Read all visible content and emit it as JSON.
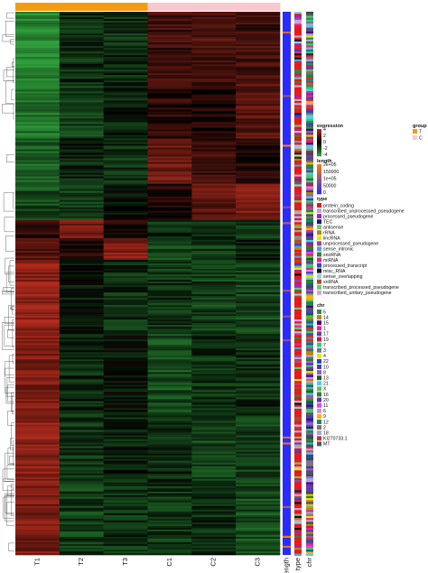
{
  "chart_data": {
    "type": "heatmap",
    "columns": [
      "T1",
      "T2",
      "T3",
      "C1",
      "C2",
      "C3"
    ],
    "annotation_columns": [
      "length",
      "type",
      "chr"
    ],
    "column_annotation": {
      "title": "group",
      "groups": [
        {
          "label": "T",
          "color": "#F39C12"
        },
        {
          "label": "C",
          "color": "#F8C8D0"
        }
      ],
      "assignment": [
        "T",
        "T",
        "T",
        "C",
        "C",
        "C"
      ]
    },
    "expression_scale": {
      "title": "expression",
      "ticks": [
        "4",
        "2",
        "0",
        "-2",
        "-4"
      ],
      "low_color": "#2E9E3A",
      "mid_color": "#000000",
      "high_color": "#B22A1C"
    },
    "length_scale": {
      "title": "length",
      "ticks": [
        "2e+05",
        "150000",
        "1e+05",
        "50000",
        "0"
      ],
      "low_color": "#2B2BFF",
      "high_color": "#FF7A00"
    },
    "type_legend": {
      "title": "type",
      "items": [
        {
          "label": "protein_coding",
          "color": "#E31A1C"
        },
        {
          "label": "transcribed_unprocessed_pseudogene",
          "color": "#C2A5CF"
        },
        {
          "label": "processed_pseudogene",
          "color": "#9C27B0"
        },
        {
          "label": "TEC",
          "color": "#0D1B7A"
        },
        {
          "label": "antisense",
          "color": "#7FBF7B"
        },
        {
          "label": "rRNA",
          "color": "#B8860B"
        },
        {
          "label": "lincRNA",
          "color": "#E6E600"
        },
        {
          "label": "unprocessed_pseudogene",
          "color": "#8E44AD"
        },
        {
          "label": "sense_intronic",
          "color": "#4FA3D8"
        },
        {
          "label": "snoRNA",
          "color": "#3C7D3C"
        },
        {
          "label": "miRNA",
          "color": "#E7298A"
        },
        {
          "label": "processed_transcript",
          "color": "#3B3BD6"
        },
        {
          "label": "misc_RNA",
          "color": "#111111"
        },
        {
          "label": "sense_overlapping",
          "color": "#9BC8E8"
        },
        {
          "label": "snRNA",
          "color": "#A0522D"
        },
        {
          "label": "transcribed_processed_pseudogene",
          "color": "#66CC66"
        },
        {
          "label": "transcribed_unitary_pseudogene",
          "color": "#D9A0E8"
        }
      ]
    },
    "chr_legend": {
      "title": "chr",
      "items": [
        {
          "label": "5",
          "color": "#2E8B57"
        },
        {
          "label": "14",
          "color": "#B8860B"
        },
        {
          "label": "15",
          "color": "#4B0082"
        },
        {
          "label": "1",
          "color": "#E7298A"
        },
        {
          "label": "17",
          "color": "#6A3D9A"
        },
        {
          "label": "19",
          "color": "#C2185B"
        },
        {
          "label": "7",
          "color": "#2ECC71"
        },
        {
          "label": "3",
          "color": "#6C7A89"
        },
        {
          "label": "4",
          "color": "#E6E600"
        },
        {
          "label": "22",
          "color": "#1F4E9E"
        },
        {
          "label": "10",
          "color": "#3949AB"
        },
        {
          "label": "8",
          "color": "#9B59B6"
        },
        {
          "label": "13",
          "color": "#1B5E20"
        },
        {
          "label": "21",
          "color": "#4DD0E1"
        },
        {
          "label": "X",
          "color": "#66BB6A"
        },
        {
          "label": "16",
          "color": "#2E7D32"
        },
        {
          "label": "20",
          "color": "#5E35B1"
        },
        {
          "label": "11",
          "color": "#E040FB"
        },
        {
          "label": "6",
          "color": "#CE93D8"
        },
        {
          "label": "9",
          "color": "#FFB300"
        },
        {
          "label": "12",
          "color": "#00897B"
        },
        {
          "label": "2",
          "color": "#8D6E63"
        },
        {
          "label": "18",
          "color": "#9FA8DA"
        },
        {
          "label": "KI270733.1",
          "color": "#D32F2F"
        },
        {
          "label": "MT",
          "color": "#455A64"
        }
      ]
    },
    "row_blocks": [
      {
        "rows": 40,
        "T1": -2.6,
        "T2": -0.8,
        "T3": -0.8,
        "C1": 1.0,
        "C2": 1.2,
        "C3": 1.0
      },
      {
        "rows": 30,
        "T1": -2.2,
        "T2": -1.2,
        "T3": -0.6,
        "C1": 0.7,
        "C2": 0.6,
        "C3": 1.5
      },
      {
        "rows": 25,
        "T1": -1.8,
        "T2": -0.6,
        "T3": -0.9,
        "C1": 1.8,
        "C2": 0.9,
        "C3": 0.6
      },
      {
        "rows": 20,
        "T1": -1.4,
        "T2": -1.0,
        "T3": -0.4,
        "C1": 0.4,
        "C2": 1.5,
        "C3": 2.0
      },
      {
        "rows": 10,
        "T1": 0.8,
        "T2": 2.0,
        "T3": 0.5,
        "C1": -0.8,
        "C2": -0.6,
        "C3": -1.0
      },
      {
        "rows": 12,
        "T1": 1.5,
        "T2": 0.6,
        "T3": 2.2,
        "C1": -1.2,
        "C2": -1.0,
        "C3": -0.4
      },
      {
        "rows": 40,
        "T1": 2.4,
        "T2": -0.4,
        "T3": -0.8,
        "C1": -0.9,
        "C2": -1.1,
        "C3": -1.2
      },
      {
        "rows": 45,
        "T1": 2.1,
        "T2": -0.7,
        "T3": -0.3,
        "C1": -1.4,
        "C2": -0.9,
        "C3": -0.8
      },
      {
        "rows": 40,
        "T1": 2.3,
        "T2": -0.9,
        "T3": -0.6,
        "C1": -0.7,
        "C2": -1.3,
        "C3": -1.1
      },
      {
        "rows": 38,
        "T1": 2.0,
        "T2": -1.1,
        "T3": -0.9,
        "C1": -1.0,
        "C2": -0.8,
        "C3": -1.4
      }
    ]
  }
}
